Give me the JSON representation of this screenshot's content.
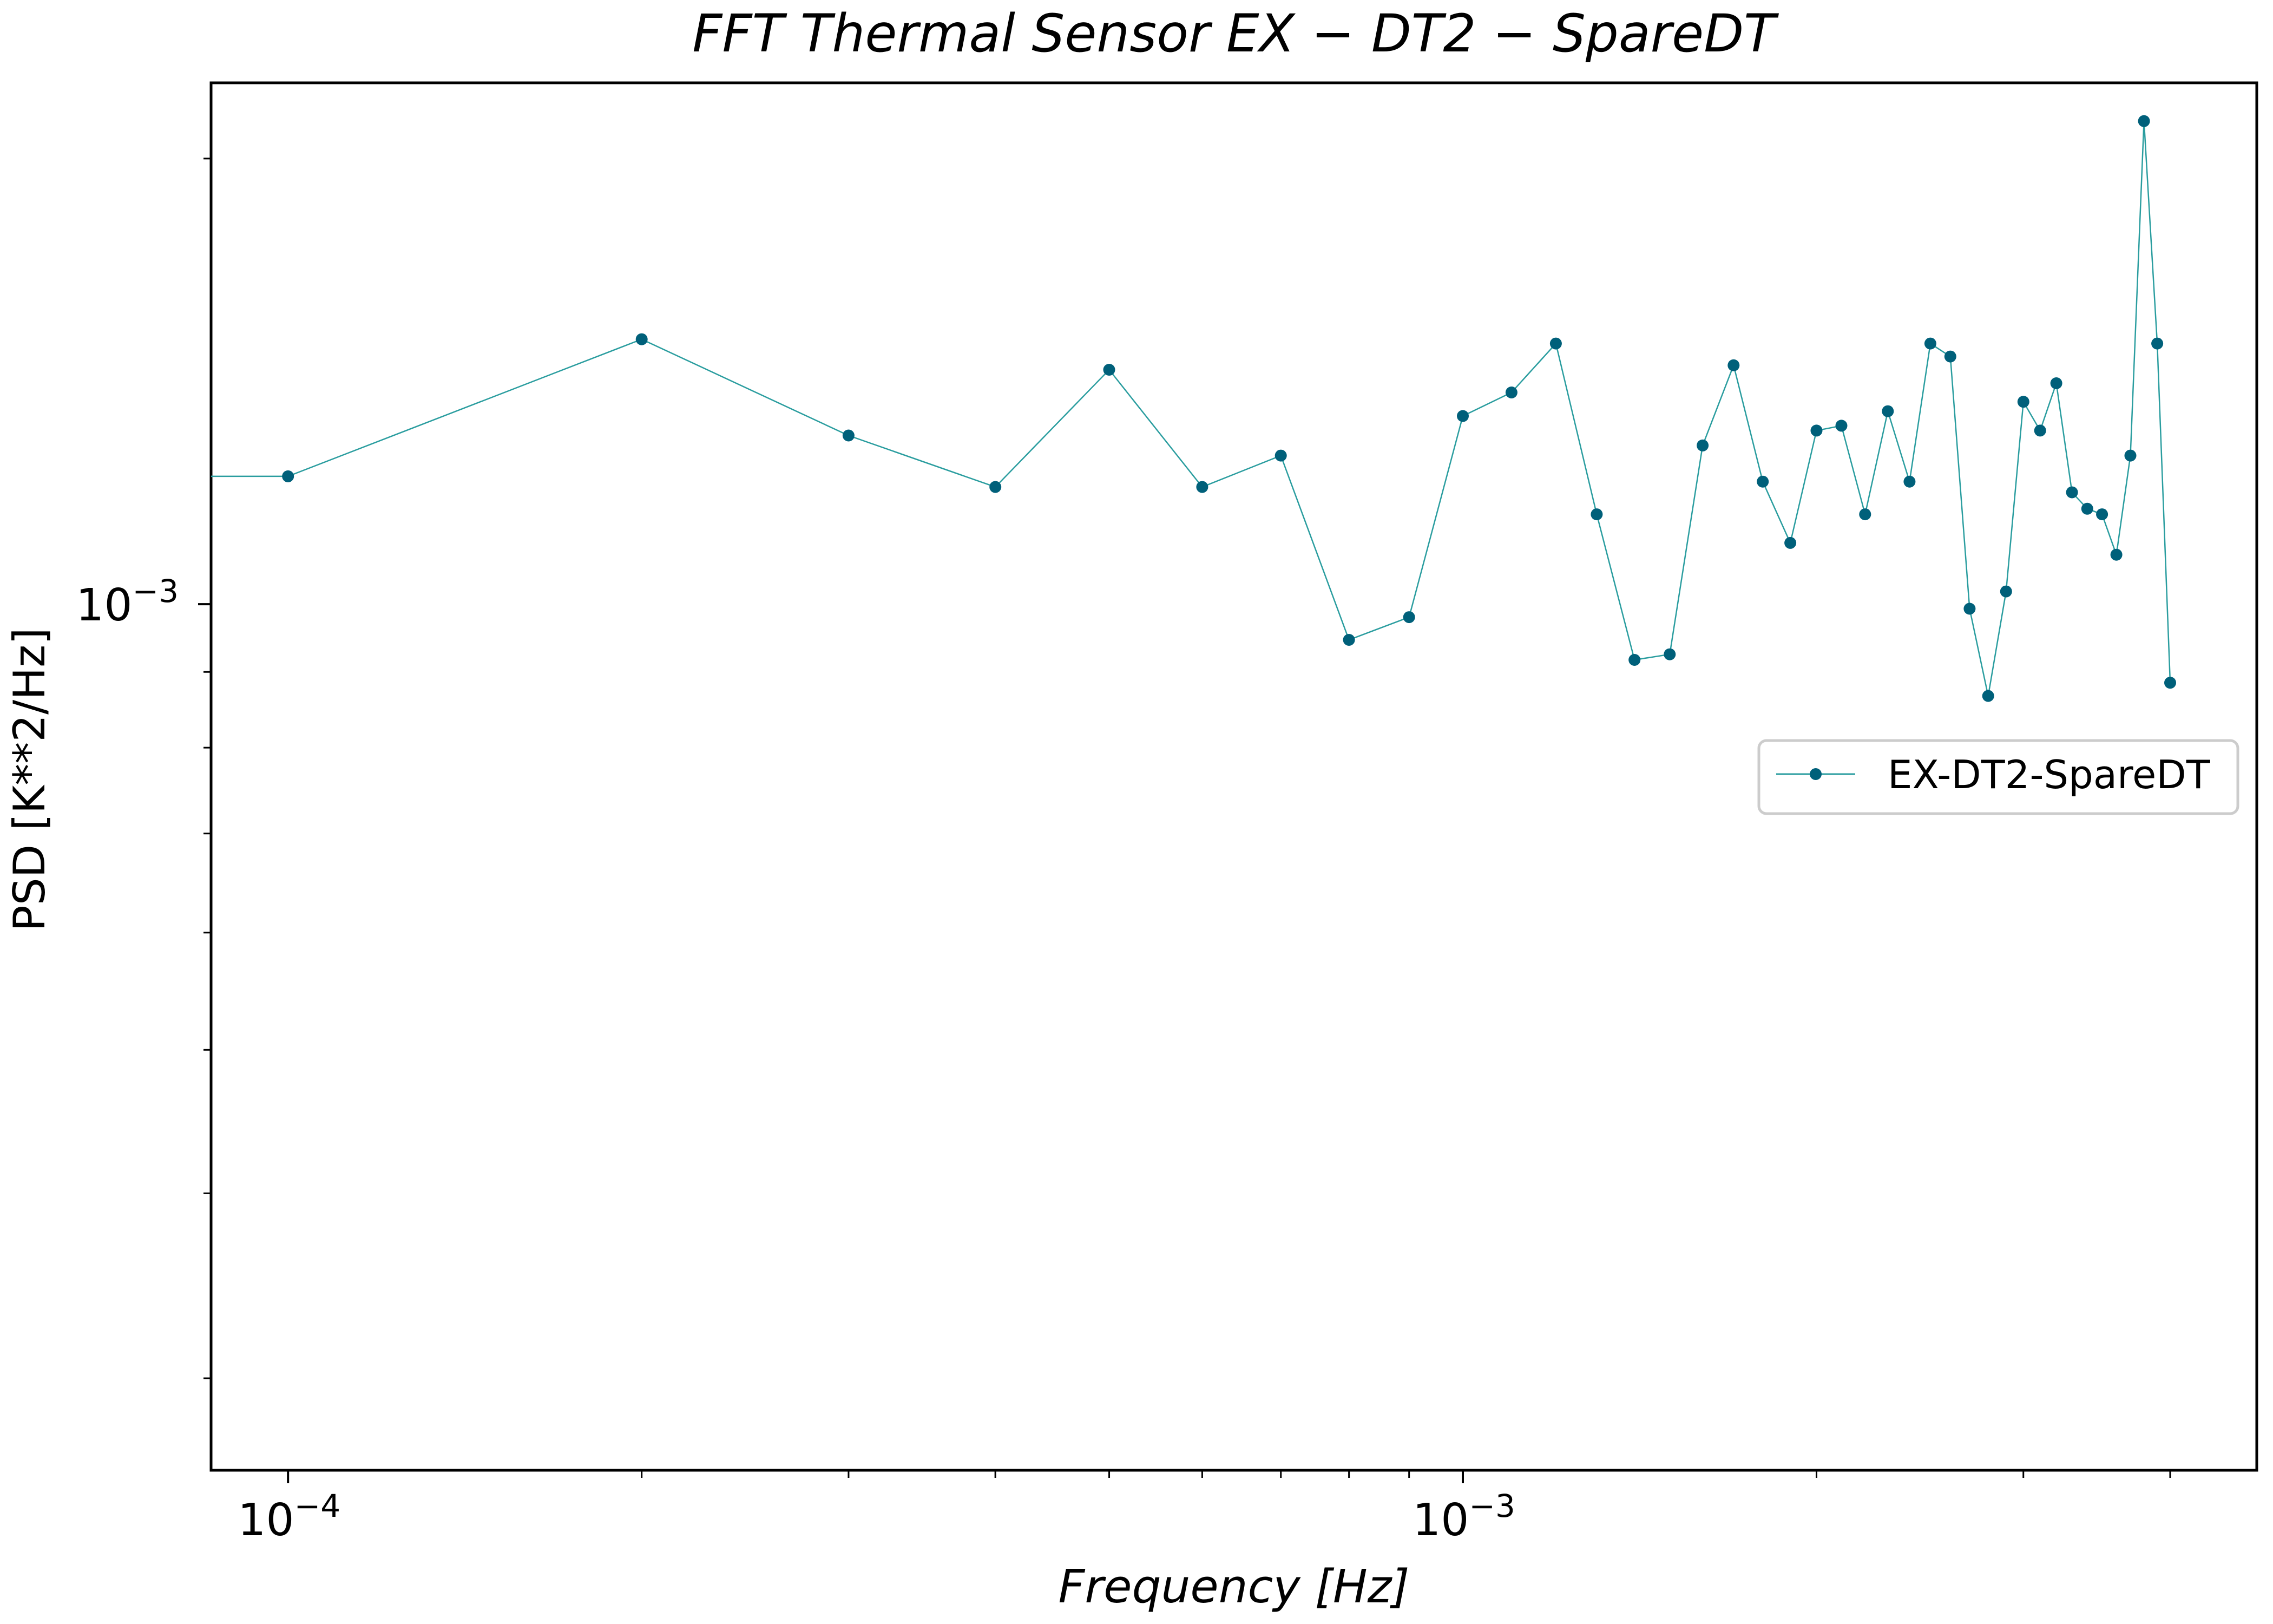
{
  "chart_data": {
    "type": "line",
    "title": "FFT Thermal Sensor EX − DT2 − SpareDT",
    "xlabel": "Frequency [Hz]",
    "ylabel": "PSD [K**2/Hz]",
    "x_scale": "log",
    "y_scale": "log",
    "xlim": [
      8.6e-05,
      0.00474
    ],
    "ylim": [
      0.00026,
      0.00225
    ],
    "x_major_ticks": [
      {
        "value": 0.0001,
        "base": "10",
        "exp": "−4"
      },
      {
        "value": 0.001,
        "base": "10",
        "exp": "−3"
      }
    ],
    "y_major_ticks": [
      {
        "value": 0.001,
        "base": "10",
        "exp": "−3"
      }
    ],
    "x_minor_ticks": [
      0.0002,
      0.0003,
      0.0004,
      0.0005,
      0.0006,
      0.0007,
      0.0008,
      0.0009,
      0.002,
      0.003,
      0.004
    ],
    "y_minor_ticks": [
      0.0003,
      0.0004,
      0.0005,
      0.0006,
      0.0007,
      0.0008,
      0.0009,
      0.002
    ],
    "grid": false,
    "legend": {
      "position": "center-right"
    },
    "color": "#2a9d9f",
    "marker_color": "#00607a",
    "series": [
      {
        "name": "EX-DT2-SpareDT",
        "x": [
          8.6e-05,
          0.0001,
          0.0002,
          0.0003,
          0.0004,
          0.0005,
          0.0006,
          0.0007,
          0.0008,
          0.0009,
          0.001,
          0.0011,
          0.0012,
          0.0013,
          0.0014,
          0.0015,
          0.0016,
          0.0017,
          0.0018,
          0.0019,
          0.002,
          0.0021,
          0.0022,
          0.0023,
          0.0024,
          0.0025,
          0.0026,
          0.0027,
          0.0028,
          0.0029,
          0.003,
          0.0031,
          0.0032,
          0.0033,
          0.0034,
          0.0035,
          0.0036,
          0.0037,
          0.0038,
          0.0039,
          0.004
        ],
        "y": [
          0.00122,
          0.00122,
          0.00151,
          0.0013,
          0.0012,
          0.00144,
          0.0012,
          0.00126,
          0.000946,
          0.00098,
          0.00134,
          0.00139,
          0.0015,
          0.00115,
          0.000917,
          0.000925,
          0.00128,
          0.00145,
          0.00121,
          0.0011,
          0.00131,
          0.00132,
          0.00115,
          0.00135,
          0.00121,
          0.0015,
          0.00147,
          0.000993,
          0.000867,
          0.00102,
          0.00137,
          0.00131,
          0.00141,
          0.00119,
          0.00116,
          0.00115,
          0.00108,
          0.00126,
          0.00212,
          0.0015,
          0.000885
        ]
      }
    ]
  }
}
